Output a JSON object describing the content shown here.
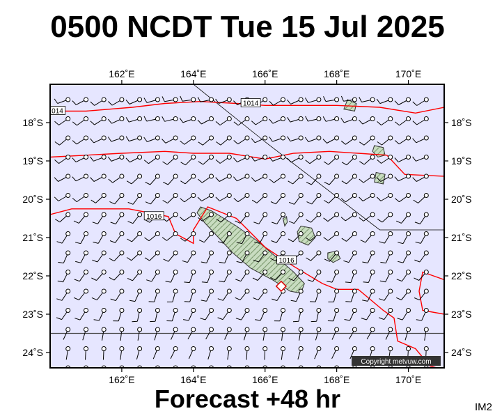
{
  "header": {
    "title": "0500 NCDT Tue 15 Jul 2025"
  },
  "footer": {
    "subtitle": "Forecast +48 hr",
    "tag": "IM2"
  },
  "map": {
    "copyright": "Copyright metvuw.com",
    "lon_range": [
      160,
      171
    ],
    "lat_range": [
      -24.4,
      -17.0
    ],
    "lon_ticks": [
      162,
      164,
      166,
      168,
      170
    ],
    "lat_ticks": [
      -18,
      -19,
      -20,
      -21,
      -22,
      -23,
      -24
    ],
    "lon_labels": [
      "162˚E",
      "164˚E",
      "166˚E",
      "168˚E",
      "170˚E"
    ],
    "lat_labels": [
      "18˚S",
      "19˚S",
      "20˚S",
      "21˚S",
      "22˚S",
      "23˚S",
      "24˚S"
    ],
    "colors": {
      "ocean": "#e6e6ff",
      "isobar": "#ff0000",
      "land": "#b8d0b0",
      "barb": "#000000"
    },
    "isobars": [
      {
        "label": "1014",
        "points": [
          [
            160,
            -17.7
          ],
          [
            161,
            -17.7
          ],
          [
            162.3,
            -17.6
          ],
          [
            163.2,
            -17.5
          ],
          [
            164.2,
            -17.45
          ],
          [
            165.2,
            -17.5
          ],
          [
            166,
            -17.55
          ],
          [
            167,
            -17.55
          ],
          [
            168,
            -17.55
          ],
          [
            169.2,
            -17.6
          ],
          [
            170.2,
            -17.75
          ],
          [
            171,
            -17.6
          ]
        ]
      },
      {
        "label": "",
        "points": [
          [
            160,
            -18.9
          ],
          [
            161,
            -18.85
          ],
          [
            162,
            -18.8
          ],
          [
            163.2,
            -18.75
          ],
          [
            164,
            -18.8
          ],
          [
            165,
            -18.8
          ],
          [
            166,
            -18.95
          ],
          [
            166.8,
            -18.8
          ],
          [
            167.8,
            -18.75
          ],
          [
            168.6,
            -18.8
          ],
          [
            169.4,
            -18.85
          ],
          [
            169.9,
            -19.35
          ],
          [
            171,
            -19.4
          ]
        ]
      },
      {
        "label": "1016",
        "points": [
          [
            160,
            -20.4
          ],
          [
            160.6,
            -20.25
          ],
          [
            162.2,
            -20.25
          ],
          [
            163.3,
            -20.45
          ],
          [
            163.5,
            -20.9
          ],
          [
            164,
            -21.15
          ],
          [
            164,
            -20.8
          ],
          [
            164.4,
            -20.2
          ],
          [
            165.2,
            -20.5
          ],
          [
            166,
            -21.25
          ],
          [
            166.8,
            -21.75
          ],
          [
            167.6,
            -22.2
          ],
          [
            168,
            -22.35
          ],
          [
            168.6,
            -22.35
          ],
          [
            169.3,
            -22.9
          ],
          [
            169.6,
            -23.1
          ],
          [
            169.7,
            -23.7
          ],
          [
            170.2,
            -23.9
          ],
          [
            170.6,
            -24.35
          ],
          [
            170.8,
            -24.4
          ]
        ]
      },
      {
        "label": "",
        "points": [
          [
            171,
            -22.1
          ],
          [
            170.4,
            -21.9
          ],
          [
            170.3,
            -22.4
          ],
          [
            170.4,
            -22.9
          ],
          [
            171,
            -23.0
          ]
        ]
      }
    ],
    "iso_labels": [
      {
        "text": "1014",
        "lon": 160.15,
        "lat": -17.7
      },
      {
        "text": "1014",
        "lon": 165.6,
        "lat": -17.5
      },
      {
        "text": "1016",
        "lon": 162.9,
        "lat": -20.45
      },
      {
        "text": "1016",
        "lon": 166.6,
        "lat": -21.6
      }
    ],
    "land": [
      {
        "name": "new-caledonia",
        "points": [
          [
            164.2,
            -20.2
          ],
          [
            164.5,
            -20.3
          ],
          [
            165.2,
            -20.7
          ],
          [
            165.8,
            -21.1
          ],
          [
            166.3,
            -21.5
          ],
          [
            166.8,
            -21.9
          ],
          [
            167.1,
            -22.2
          ],
          [
            167.0,
            -22.45
          ],
          [
            166.7,
            -22.4
          ],
          [
            166.2,
            -22.1
          ],
          [
            165.6,
            -21.8
          ],
          [
            165.1,
            -21.4
          ],
          [
            164.6,
            -20.9
          ],
          [
            164.3,
            -20.6
          ],
          [
            164.1,
            -20.35
          ]
        ]
      },
      {
        "name": "lifou",
        "points": [
          [
            167.0,
            -20.7
          ],
          [
            167.3,
            -20.75
          ],
          [
            167.4,
            -21.0
          ],
          [
            167.2,
            -21.2
          ],
          [
            166.95,
            -21.1
          ],
          [
            166.9,
            -20.85
          ]
        ]
      },
      {
        "name": "mare",
        "points": [
          [
            167.75,
            -21.4
          ],
          [
            168.0,
            -21.35
          ],
          [
            168.1,
            -21.55
          ],
          [
            167.9,
            -21.65
          ],
          [
            167.75,
            -21.55
          ]
        ]
      },
      {
        "name": "ouvea",
        "points": [
          [
            166.5,
            -20.5
          ],
          [
            166.6,
            -20.45
          ],
          [
            166.62,
            -20.6
          ],
          [
            166.55,
            -20.7
          ]
        ]
      },
      {
        "name": "efate",
        "points": [
          [
            169.05,
            -18.6
          ],
          [
            169.3,
            -18.65
          ],
          [
            169.35,
            -18.85
          ],
          [
            169.15,
            -18.9
          ],
          [
            169.0,
            -18.75
          ]
        ]
      },
      {
        "name": "erromango",
        "points": [
          [
            169.1,
            -19.3
          ],
          [
            169.35,
            -19.35
          ],
          [
            169.3,
            -19.6
          ],
          [
            169.05,
            -19.55
          ]
        ]
      },
      {
        "name": "malekula",
        "points": [
          [
            168.3,
            -17.4
          ],
          [
            168.55,
            -17.5
          ],
          [
            168.5,
            -17.7
          ],
          [
            168.2,
            -17.65
          ]
        ]
      }
    ],
    "track": [
      [
        164.0,
        -17.0
      ],
      [
        166.0,
        -18.5
      ],
      [
        169.2,
        -20.8
      ],
      [
        171,
        -20.8
      ]
    ],
    "parallel": -23.5,
    "marker": {
      "lon": 166.45,
      "lat": -22.27
    },
    "grid_start": {
      "lon": 160.5,
      "lat": -17.4
    },
    "grid_step": {
      "lon": 0.5,
      "lat": 0.5
    },
    "grid_count": {
      "cols": 21,
      "rows": 15
    }
  }
}
